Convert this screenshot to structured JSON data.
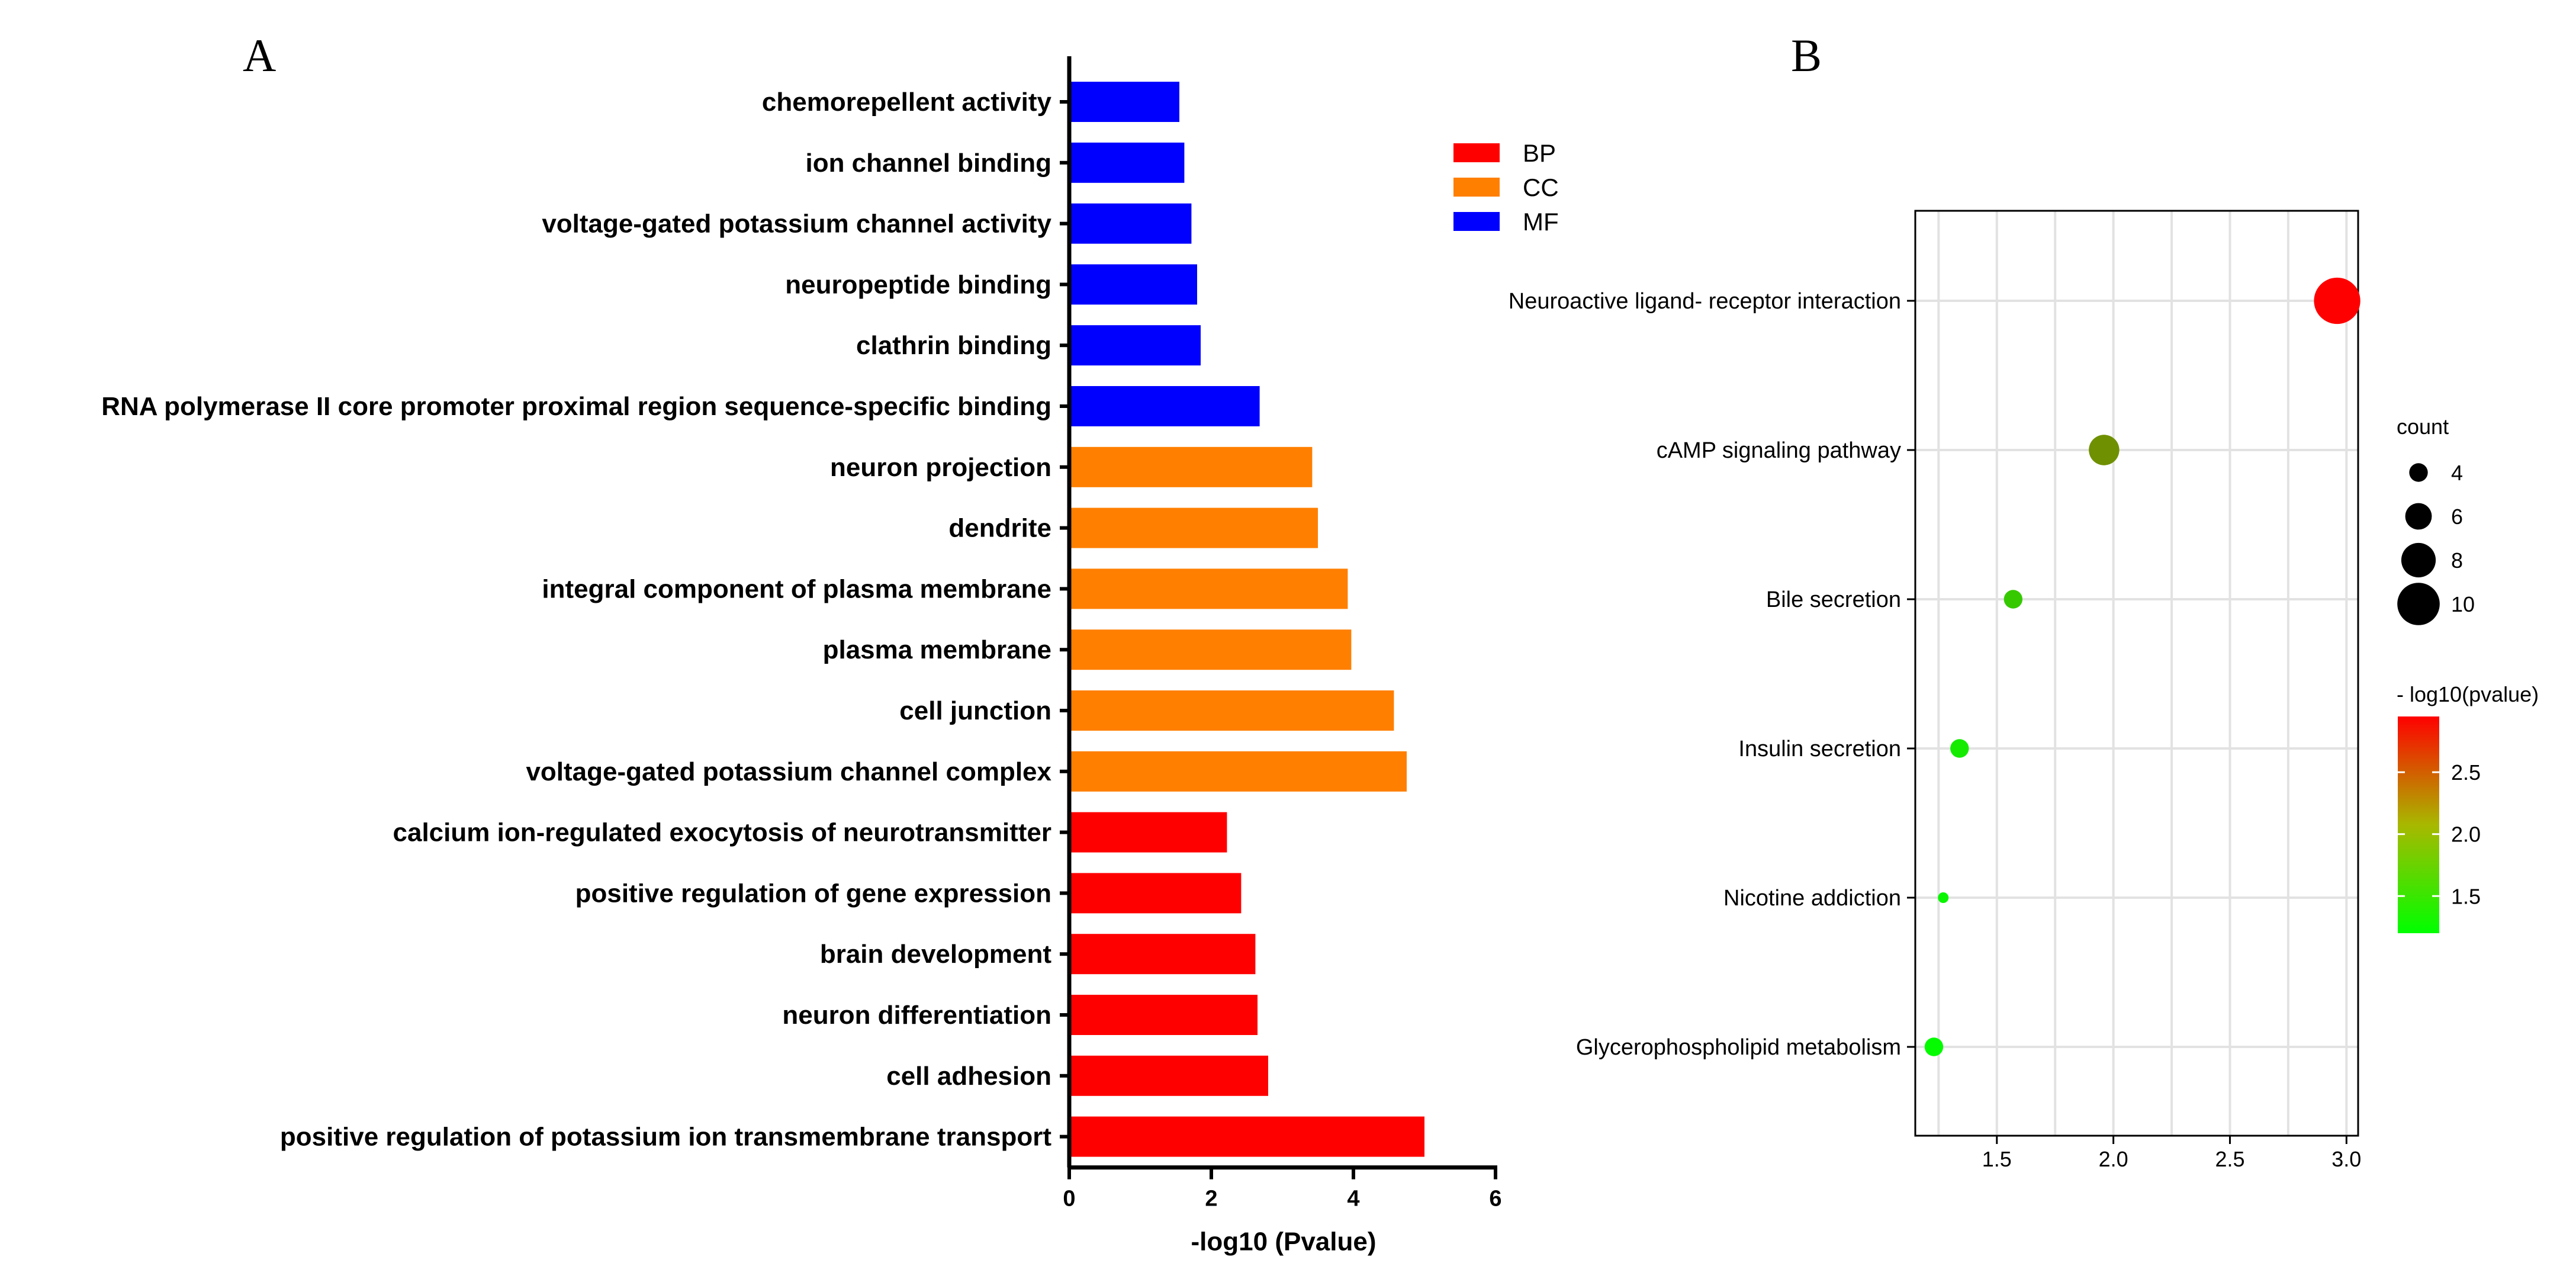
{
  "chart_data": [
    {
      "panel": "A",
      "type": "bar",
      "orientation": "horizontal",
      "categories": [
        "chemorepellent activity",
        "ion channel binding",
        "voltage-gated potassium channel activity",
        "neuropeptide binding",
        "clathrin binding",
        "RNA polymerase II core promoter proximal region sequence-specific binding",
        "neuron projection",
        "dendrite",
        "integral component of plasma membrane",
        "plasma membrane",
        "cell junction",
        "voltage-gated potassium channel complex",
        "calcium ion-regulated exocytosis of neurotransmitter",
        "positive regulation of gene expression",
        "brain development",
        "neuron differentiation",
        "cell adhesion",
        "positive regulation of potassium ion transmembrane transport"
      ],
      "values": [
        1.55,
        1.62,
        1.72,
        1.8,
        1.85,
        2.68,
        3.42,
        3.5,
        3.92,
        3.97,
        4.57,
        4.75,
        2.22,
        2.42,
        2.62,
        2.65,
        2.8,
        5.0
      ],
      "groups": [
        "MF",
        "MF",
        "MF",
        "MF",
        "MF",
        "MF",
        "CC",
        "CC",
        "CC",
        "CC",
        "CC",
        "CC",
        "BP",
        "BP",
        "BP",
        "BP",
        "BP",
        "BP"
      ],
      "xlim": [
        0,
        6
      ],
      "xticks": [
        "0",
        "2",
        "4",
        "6"
      ],
      "xlabel": "-log10 (Pvalue)",
      "legend": [
        {
          "label": "BP",
          "color": "#ff0000"
        },
        {
          "label": "CC",
          "color": "#ff7f00"
        },
        {
          "label": "MF",
          "color": "#0000ff"
        }
      ],
      "legend_position": "top-right"
    },
    {
      "panel": "B",
      "type": "scatter",
      "pathways": [
        "Neuroactive ligand- receptor interaction",
        "cAMP signaling pathway",
        "Bile secretion",
        "Insulin secretion",
        "Nicotine addiction",
        "Glycerophospholipid metabolism"
      ],
      "x": [
        2.96,
        1.96,
        1.57,
        1.34,
        1.27,
        1.23
      ],
      "count": [
        11,
        7,
        4,
        4,
        2,
        4
      ],
      "neg_log10_pvalue": [
        2.96,
        1.96,
        1.57,
        1.34,
        1.27,
        1.23
      ],
      "xlim": [
        1.15,
        3.05
      ],
      "xticks": [
        "1.5",
        "2.0",
        "2.5",
        "3.0"
      ],
      "xgrid": [
        1.25,
        1.5,
        1.75,
        2.0,
        2.25,
        2.5,
        2.75,
        3.0
      ],
      "size_legend": {
        "title": "count",
        "values": [
          "4",
          "6",
          "8",
          "10"
        ]
      },
      "color_legend": {
        "title": "- log10(pvalue)",
        "ticks": [
          "2.5",
          "2.0",
          "1.5"
        ],
        "low_color": "#00ff00",
        "high_color": "#ff0000",
        "range": [
          1.2,
          2.95
        ]
      }
    }
  ],
  "panel_labels": {
    "a": "A",
    "b": "B"
  }
}
